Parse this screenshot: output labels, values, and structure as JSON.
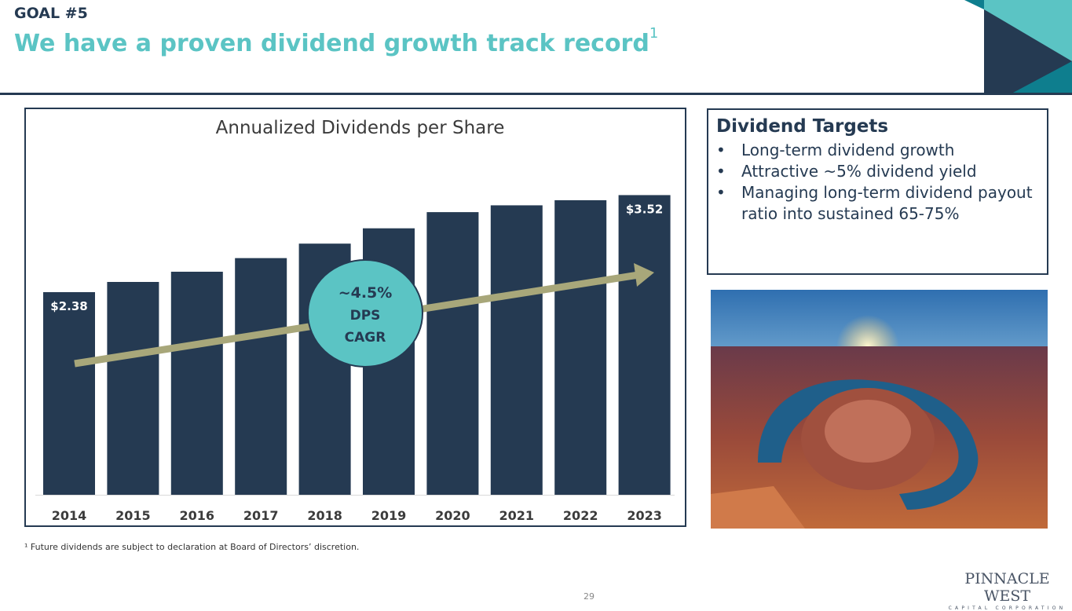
{
  "header": {
    "goal": "GOAL #5",
    "title": "We have a proven dividend growth track record",
    "title_footnote_ref": "1"
  },
  "chart_data": {
    "type": "bar",
    "title": "Annualized Dividends per Share",
    "categories": [
      "2014",
      "2015",
      "2016",
      "2017",
      "2018",
      "2019",
      "2020",
      "2021",
      "2022",
      "2023"
    ],
    "values": [
      2.38,
      2.5,
      2.62,
      2.78,
      2.95,
      3.13,
      3.32,
      3.4,
      3.46,
      3.52
    ],
    "data_labels": {
      "first": "$2.38",
      "last": "$3.52"
    },
    "ylim": [
      0,
      3.6
    ],
    "xlabel": "",
    "ylabel": "",
    "annotation": {
      "line1": "~4.5%",
      "line2": "DPS",
      "line3": "CAGR"
    },
    "colors": {
      "bar": "#253a52",
      "arrow": "#a8a77a",
      "badge": "#5bc4c4"
    }
  },
  "targets": {
    "heading": "Dividend Targets",
    "items": [
      "Long-term dividend growth",
      "Attractive ~5% dividend yield",
      "Managing long-term dividend payout ratio into sustained 65-75%"
    ]
  },
  "footnote": "¹ Future dividends are subject to declaration at Board of Directors’ discretion.",
  "page_number": "29",
  "logo": {
    "line1": "PINNACLE WEST",
    "line2": "CAPITAL CORPORATION"
  }
}
